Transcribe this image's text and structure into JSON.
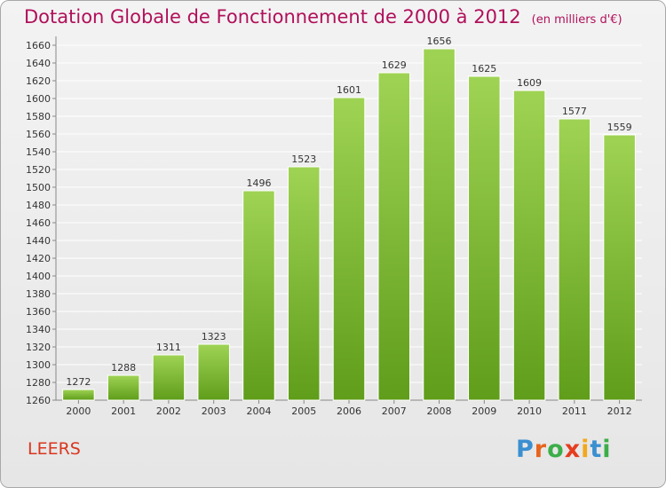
{
  "title": "Dotation Globale de Fonctionnement de 2000 à 2012",
  "unit": "(en milliers d'€)",
  "commune": "LEERS",
  "logo": {
    "letters": [
      "P",
      "r",
      "o",
      "x",
      "i",
      "t",
      "i"
    ],
    "colors": [
      "#3a8fd0",
      "#e6641e",
      "#3cae49",
      "#e63c1e",
      "#f2a81d",
      "#3a8fd0",
      "#3cae49"
    ]
  },
  "colors": {
    "bar_top": "#9fd354",
    "bar_bottom": "#5f9d1a",
    "title": "#b0105a",
    "commune": "#d9361f",
    "grid": "#ffffff"
  },
  "chart_data": {
    "type": "bar",
    "categories": [
      "2000",
      "2001",
      "2002",
      "2003",
      "2004",
      "2005",
      "2006",
      "2007",
      "2008",
      "2009",
      "2010",
      "2011",
      "2012"
    ],
    "values": [
      1272,
      1288,
      1311,
      1323,
      1496,
      1523,
      1601,
      1629,
      1656,
      1625,
      1609,
      1577,
      1559
    ],
    "ylim": [
      1260,
      1670
    ],
    "yticks": [
      1260,
      1280,
      1300,
      1320,
      1340,
      1360,
      1380,
      1400,
      1420,
      1440,
      1460,
      1480,
      1500,
      1520,
      1540,
      1560,
      1580,
      1600,
      1620,
      1640,
      1660
    ],
    "grid": true,
    "data_labels": true
  }
}
